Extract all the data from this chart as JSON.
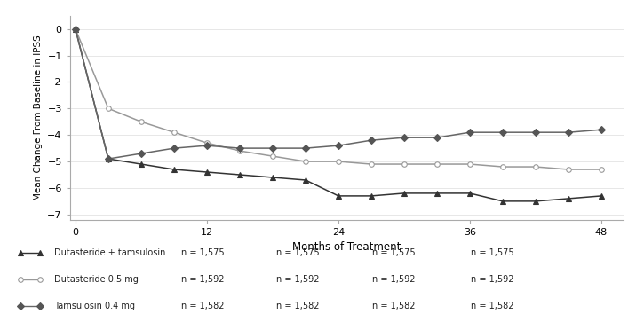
{
  "xlabel": "Months of Treatment",
  "ylabel": "Mean Change From Baseline in IPSS",
  "ylim": [
    -7.2,
    0.5
  ],
  "xlim": [
    -0.5,
    50
  ],
  "yticks": [
    0,
    -1,
    -2,
    -3,
    -4,
    -5,
    -6,
    -7
  ],
  "xticks": [
    0,
    12,
    24,
    36,
    48
  ],
  "combo_x": [
    0,
    3,
    6,
    9,
    12,
    15,
    18,
    21,
    24,
    27,
    30,
    33,
    36,
    39,
    42,
    45,
    48
  ],
  "combo_y": [
    0,
    -4.9,
    -5.1,
    -5.3,
    -5.4,
    -5.5,
    -5.6,
    -5.7,
    -6.3,
    -6.3,
    -6.2,
    -6.2,
    -6.2,
    -6.5,
    -6.5,
    -6.4,
    -6.3
  ],
  "dutasteride_x": [
    0,
    3,
    6,
    9,
    12,
    15,
    18,
    21,
    24,
    27,
    30,
    33,
    36,
    39,
    42,
    45,
    48
  ],
  "dutasteride_y": [
    0,
    -3.0,
    -3.5,
    -3.9,
    -4.3,
    -4.6,
    -4.8,
    -5.0,
    -5.0,
    -5.1,
    -5.1,
    -5.1,
    -5.1,
    -5.2,
    -5.2,
    -5.3,
    -5.3
  ],
  "tamsulosin_x": [
    0,
    3,
    6,
    9,
    12,
    15,
    18,
    21,
    24,
    27,
    30,
    33,
    36,
    39,
    42,
    45,
    48
  ],
  "tamsulosin_y": [
    0,
    -4.9,
    -4.7,
    -4.5,
    -4.4,
    -4.5,
    -4.5,
    -4.5,
    -4.4,
    -4.2,
    -4.1,
    -4.1,
    -3.9,
    -3.9,
    -3.9,
    -3.9,
    -3.8
  ],
  "combo_label": "Dutasteride + tamsulosin",
  "dutasteride_label": "Dutasteride 0.5 mg",
  "tamsulosin_label": "Tamsulosin 0.4 mg",
  "table_rows": [
    [
      "Dutasteride + tamsulosin",
      "n = 1,575",
      "n = 1,575",
      "n = 1,575",
      "n = 1,575"
    ],
    [
      "Dutasteride 0.5 mg",
      "n = 1,592",
      "n = 1,592",
      "n = 1,592",
      "n = 1,592"
    ],
    [
      "Tamsulosin 0.4 mg",
      "n = 1,582",
      "n = 1,582",
      "n = 1,582",
      "n = 1,582"
    ]
  ],
  "line_colors": [
    "#333333",
    "#999999",
    "#666666"
  ],
  "marker_types": [
    "^",
    "o",
    "D"
  ],
  "marker_facecolors": [
    "#333333",
    "#ffffff",
    "#555555"
  ],
  "marker_edgecolors": [
    "#333333",
    "#999999",
    "#555555"
  ]
}
